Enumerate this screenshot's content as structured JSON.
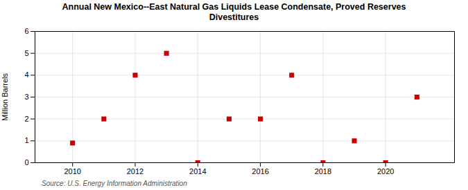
{
  "chart_data": {
    "type": "scatter",
    "title": "Annual New Mexico--East Natural Gas Liquids Lease Condensate, Proved Reserves\nDivestitures",
    "ylabel": "Million Barrels",
    "source": "Source: U.S. Energy Information Administration",
    "x": [
      2010,
      2011,
      2012,
      2013,
      2014,
      2015,
      2016,
      2017,
      2018,
      2019,
      2020,
      2021
    ],
    "values": [
      0.9,
      2.0,
      4.0,
      5.0,
      0.0,
      2.0,
      2.0,
      4.0,
      0.0,
      1.0,
      0.0,
      3.0
    ],
    "color": "#cc0000",
    "marker": "square",
    "xlim": [
      2008.8,
      2022.2
    ],
    "xticks": [
      2010,
      2012,
      2014,
      2016,
      2018,
      2020
    ],
    "ylim": [
      0,
      6
    ],
    "yticks": [
      0,
      1,
      2,
      3,
      4,
      5,
      6
    ],
    "grid": true
  }
}
